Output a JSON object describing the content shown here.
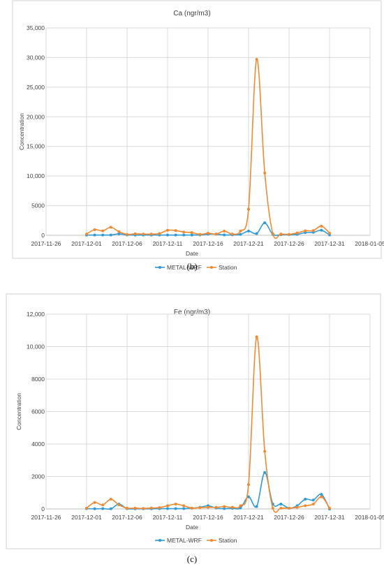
{
  "panel_labels": [
    "(b)",
    "(c)"
  ],
  "colors": {
    "model": "#2e9bd6",
    "station": "#f08a32",
    "grid": "#d9d9d9"
  },
  "chart_data": [
    {
      "type": "line",
      "title": "Ca (ngr/m3)",
      "xlabel": "Date",
      "ylabel": "Concentration",
      "xlim": [
        "2017-11-26",
        "2018-01-05"
      ],
      "xticks": [
        "2017-11-26",
        "2017-12-01",
        "2017-12-06",
        "2017-12-11",
        "2017-12-16",
        "2017-12-21",
        "2017-12-26",
        "2017-12-31",
        "2018-01-05"
      ],
      "ylim": [
        0,
        35000
      ],
      "yticks": [
        0,
        5000,
        10000,
        15000,
        20000,
        25000,
        30000,
        35000
      ],
      "ytick_labels": [
        "0",
        "5000",
        "10,000",
        "15,000",
        "20,000",
        "25,000",
        "30,000",
        "35,000"
      ],
      "grid": true,
      "legend": "bottom",
      "x": [
        "2017-12-01",
        "2017-12-02",
        "2017-12-03",
        "2017-12-04",
        "2017-12-05",
        "2017-12-06",
        "2017-12-07",
        "2017-12-08",
        "2017-12-09",
        "2017-12-10",
        "2017-12-11",
        "2017-12-12",
        "2017-12-13",
        "2017-12-14",
        "2017-12-15",
        "2017-12-16",
        "2017-12-17",
        "2017-12-18",
        "2017-12-19",
        "2017-12-20",
        "2017-12-21",
        "2017-12-22",
        "2017-12-23",
        "2017-12-24",
        "2017-12-25",
        "2017-12-26",
        "2017-12-27",
        "2017-12-28",
        "2017-12-29",
        "2017-12-30",
        "2017-12-31"
      ],
      "series": [
        {
          "name": "METAL-WRF",
          "color": "#2e9bd6",
          "values": [
            30,
            40,
            40,
            50,
            250,
            60,
            40,
            40,
            40,
            40,
            40,
            40,
            40,
            50,
            60,
            200,
            200,
            60,
            80,
            150,
            700,
            300,
            2100,
            150,
            100,
            100,
            150,
            450,
            500,
            850,
            60
          ]
        },
        {
          "name": "Station",
          "color": "#f08a32",
          "values": [
            200,
            950,
            750,
            1350,
            600,
            150,
            250,
            200,
            200,
            300,
            850,
            800,
            550,
            450,
            150,
            350,
            200,
            700,
            200,
            700,
            4400,
            29700,
            10500,
            250,
            200,
            150,
            400,
            750,
            800,
            1550,
            350
          ]
        }
      ]
    },
    {
      "type": "line",
      "title": "Fe (ngr/m3)",
      "xlabel": "Date",
      "ylabel": "Concentration",
      "xlim": [
        "2017-11-26",
        "2018-01-05"
      ],
      "xticks": [
        "2017-11-26",
        "2017-12-01",
        "2017-12-06",
        "2017-12-11",
        "2017-12-16",
        "2017-12-21",
        "2017-12-26",
        "2017-12-31",
        "2018-01-05"
      ],
      "ylim": [
        0,
        12000
      ],
      "yticks": [
        0,
        2000,
        4000,
        6000,
        8000,
        10000,
        12000
      ],
      "ytick_labels": [
        "0",
        "2000",
        "4000",
        "6000",
        "8000",
        "10,000",
        "12,000"
      ],
      "grid": true,
      "legend": "bottom",
      "x": [
        "2017-12-01",
        "2017-12-02",
        "2017-12-03",
        "2017-12-04",
        "2017-12-05",
        "2017-12-06",
        "2017-12-07",
        "2017-12-08",
        "2017-12-09",
        "2017-12-10",
        "2017-12-11",
        "2017-12-12",
        "2017-12-13",
        "2017-12-14",
        "2017-12-15",
        "2017-12-16",
        "2017-12-17",
        "2017-12-18",
        "2017-12-19",
        "2017-12-20",
        "2017-12-21",
        "2017-12-22",
        "2017-12-23",
        "2017-12-24",
        "2017-12-25",
        "2017-12-26",
        "2017-12-27",
        "2017-12-28",
        "2017-12-29",
        "2017-12-30",
        "2017-12-31"
      ],
      "series": [
        {
          "name": "METAL-WRF",
          "color": "#2e9bd6",
          "values": [
            20,
            10,
            20,
            10,
            300,
            20,
            10,
            10,
            10,
            20,
            20,
            20,
            20,
            50,
            100,
            200,
            60,
            20,
            40,
            60,
            750,
            150,
            2250,
            300,
            300,
            50,
            200,
            600,
            550,
            900,
            0
          ]
        },
        {
          "name": "Station",
          "color": "#f08a32",
          "values": [
            50,
            400,
            250,
            600,
            250,
            50,
            50,
            30,
            60,
            80,
            200,
            300,
            200,
            50,
            80,
            100,
            100,
            150,
            100,
            200,
            1500,
            10600,
            3550,
            50,
            50,
            50,
            100,
            200,
            300,
            750,
            50
          ]
        }
      ]
    }
  ]
}
